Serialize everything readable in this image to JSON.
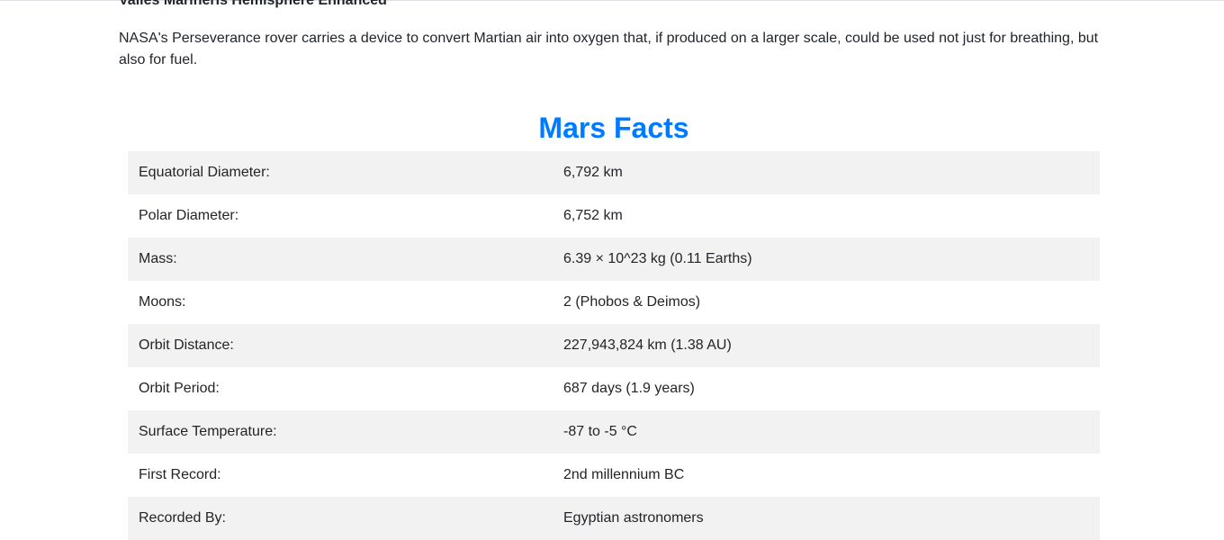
{
  "article": {
    "title": "Valles Marineris Hemisphere Enhanced",
    "paragraph": "NASA's Perseverance rover carries a device to convert Martian air into oxygen that, if produced on a larger scale, could be used not just for breathing, but also for fuel."
  },
  "facts": {
    "heading": "Mars Facts",
    "heading_color": "#007bff",
    "rows": [
      {
        "label": "Equatorial Diameter:",
        "value": "6,792 km"
      },
      {
        "label": "Polar Diameter:",
        "value": "6,752 km"
      },
      {
        "label": "Mass:",
        "value": "6.39 × 10^23 kg (0.11 Earths)"
      },
      {
        "label": "Moons:",
        "value": "2 (Phobos & Deimos)"
      },
      {
        "label": "Orbit Distance:",
        "value": "227,943,824 km (1.38 AU)"
      },
      {
        "label": "Orbit Period:",
        "value": "687 days (1.9 years)"
      },
      {
        "label": "Surface Temperature:",
        "value": "-87 to -5 °C"
      },
      {
        "label": "First Record:",
        "value": "2nd millennium BC"
      },
      {
        "label": "Recorded By:",
        "value": "Egyptian astronomers"
      }
    ]
  }
}
